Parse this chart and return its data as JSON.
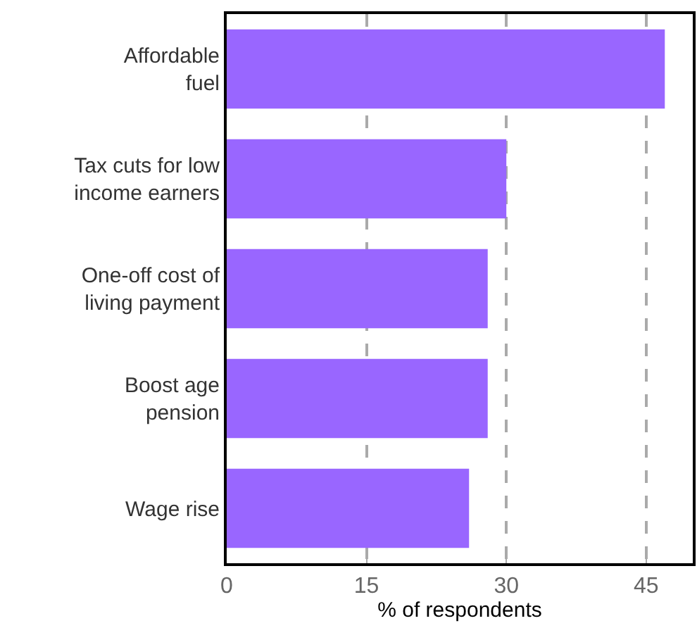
{
  "chart_data": {
    "type": "bar",
    "orientation": "horizontal",
    "categories": [
      "Affordable\nfuel",
      "Tax cuts for low\nincome earners",
      "One-off cost of\nliving payment",
      "Boost age\npension",
      "Wage rise"
    ],
    "values": [
      47,
      30,
      28,
      28,
      26
    ],
    "color": "#9966ff",
    "xlim": [
      0,
      50
    ],
    "xticks": [
      0,
      15,
      30,
      45
    ],
    "xlabel": "% of respondents",
    "grid": "x"
  }
}
